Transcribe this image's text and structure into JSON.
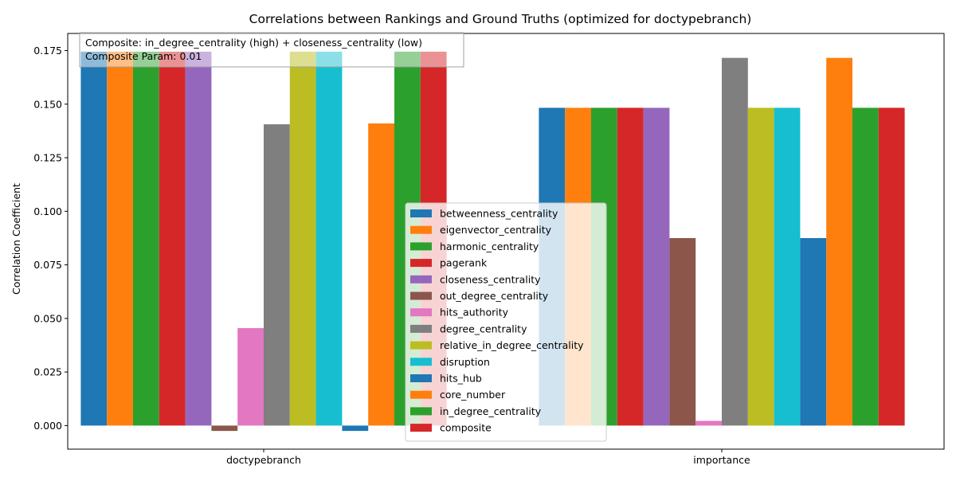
{
  "chart_data": {
    "type": "bar",
    "title": "Correlations between Rankings and Ground Truths (optimized for doctypebranch)",
    "xlabel": "",
    "ylabel": "Correlation Coefficient",
    "ylim": [
      -0.011,
      0.183
    ],
    "yticks": [
      0.0,
      0.025,
      0.05,
      0.075,
      0.1,
      0.125,
      0.15,
      0.175
    ],
    "ytick_labels": [
      "0.000",
      "0.025",
      "0.050",
      "0.075",
      "0.100",
      "0.125",
      "0.150",
      "0.175"
    ],
    "categories": [
      "doctypebranch",
      "importance"
    ],
    "grid": false,
    "legend_position": "center-bottom",
    "annotation": {
      "lines": [
        "Composite: in_degree_centrality (high) + closeness_centrality (low)",
        "Composite Param: 0.01"
      ],
      "position": "top-left"
    },
    "series": [
      {
        "name": "betweenness_centrality",
        "color": "#1f77b4",
        "values": [
          0.1745,
          0.1483
        ]
      },
      {
        "name": "eigenvector_centrality",
        "color": "#ff7f0e",
        "values": [
          0.1745,
          0.1483
        ]
      },
      {
        "name": "harmonic_centrality",
        "color": "#2ca02c",
        "values": [
          0.1745,
          0.1483
        ]
      },
      {
        "name": "pagerank",
        "color": "#d62728",
        "values": [
          0.1745,
          0.1483
        ]
      },
      {
        "name": "closeness_centrality",
        "color": "#9467bd",
        "values": [
          0.1745,
          0.1483
        ]
      },
      {
        "name": "out_degree_centrality",
        "color": "#8c564b",
        "values": [
          -0.0025,
          0.0875
        ]
      },
      {
        "name": "hits_authority",
        "color": "#e377c2",
        "values": [
          0.0455,
          0.0022
        ]
      },
      {
        "name": "degree_centrality",
        "color": "#7f7f7f",
        "values": [
          0.1406,
          0.1716
        ]
      },
      {
        "name": "relative_in_degree_centrality",
        "color": "#bcbd22",
        "values": [
          0.1745,
          0.1483
        ]
      },
      {
        "name": "disruption",
        "color": "#17becf",
        "values": [
          0.1745,
          0.1483
        ]
      },
      {
        "name": "hits_hub",
        "color": "#1f77b4",
        "values": [
          -0.0025,
          0.0875
        ]
      },
      {
        "name": "core_number",
        "color": "#ff7f0e",
        "values": [
          0.141,
          0.1716
        ]
      },
      {
        "name": "in_degree_centrality",
        "color": "#2ca02c",
        "values": [
          0.1745,
          0.1483
        ]
      },
      {
        "name": "composite",
        "color": "#d62728",
        "values": [
          0.1745,
          0.1483
        ]
      }
    ]
  }
}
